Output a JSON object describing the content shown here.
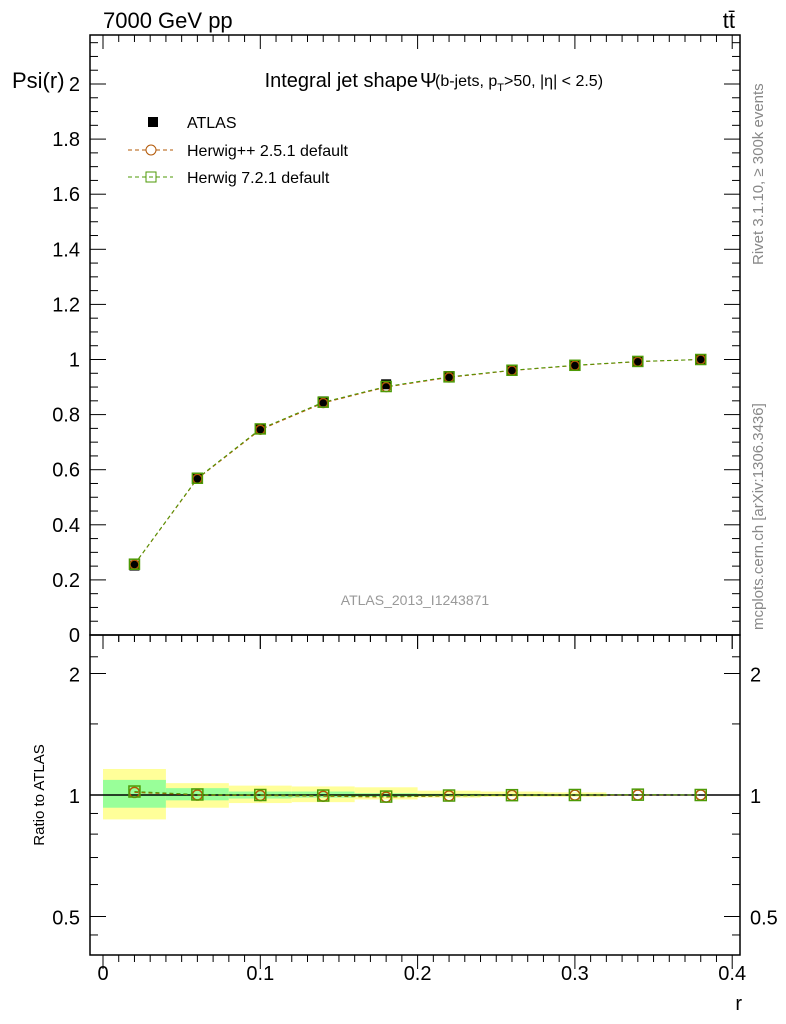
{
  "chart_data": [
    {
      "type": "line",
      "title": "Integral jet shape",
      "title_symbol": "Ψ",
      "title_detail": "(b-jets, p",
      "title_sub": "T",
      "title_detail2": ">50, |η| < 2.5)",
      "ylabel": "Psi(r)",
      "xlabel": "r",
      "xlim": [
        -0.008,
        0.405
      ],
      "ylim": [
        0,
        2.18
      ],
      "yticks": [
        "0",
        "0.2",
        "0.4",
        "0.6",
        "0.8",
        "1",
        "1.2",
        "1.4",
        "1.6",
        "1.8",
        "2"
      ],
      "x": [
        0.02,
        0.06,
        0.1,
        0.14,
        0.18,
        0.22,
        0.26,
        0.3,
        0.34,
        0.38
      ],
      "series": [
        {
          "name": "ATLAS",
          "values": [
            0.252,
            0.567,
            0.748,
            0.848,
            0.91,
            0.94,
            0.962,
            0.979,
            0.993,
            1.0
          ],
          "color": "#000000"
        },
        {
          "name": "Herwig++ 2.5.1 default",
          "values": [
            0.256,
            0.567,
            0.745,
            0.842,
            0.9,
            0.935,
            0.96,
            0.978,
            0.992,
            1.0
          ],
          "color": "#b35806"
        },
        {
          "name": "Herwig 7.2.1 default",
          "values": [
            0.257,
            0.569,
            0.748,
            0.845,
            0.902,
            0.937,
            0.961,
            0.979,
            0.993,
            1.0
          ],
          "color": "#4d9a06"
        }
      ],
      "legend": "top-left"
    },
    {
      "type": "line",
      "ylabel": "Ratio to ATLAS",
      "xlabel": "r",
      "yscale": "log",
      "ylim": [
        0.4,
        2.5
      ],
      "yticks": [
        "0.5",
        "1",
        "2"
      ],
      "xticks": [
        "0",
        "0.1",
        "0.2",
        "0.3",
        "0.4"
      ],
      "x": [
        0.02,
        0.06,
        0.1,
        0.14,
        0.18,
        0.22,
        0.26,
        0.3,
        0.34,
        0.38
      ],
      "bins": [
        [
          0,
          0.04
        ],
        [
          0.04,
          0.08
        ],
        [
          0.08,
          0.12
        ],
        [
          0.12,
          0.16
        ],
        [
          0.16,
          0.2
        ],
        [
          0.2,
          0.24
        ],
        [
          0.24,
          0.28
        ],
        [
          0.28,
          0.32
        ],
        [
          0.32,
          0.36
        ],
        [
          0.36,
          0.4
        ]
      ],
      "band_total": [
        [
          0.87,
          1.16
        ],
        [
          0.93,
          1.07
        ],
        [
          0.955,
          1.055
        ],
        [
          0.96,
          1.05
        ],
        [
          0.975,
          1.045
        ],
        [
          0.985,
          1.025
        ],
        [
          0.99,
          1.02
        ],
        [
          0.99,
          1.015
        ],
        [
          0.998,
          1.002
        ],
        [
          0.999,
          1.001
        ]
      ],
      "band_stat": [
        [
          0.93,
          1.09
        ],
        [
          0.97,
          1.04
        ],
        [
          0.98,
          1.02
        ],
        [
          0.985,
          1.02
        ],
        [
          0.99,
          1.01
        ],
        [
          0.993,
          1.007
        ],
        [
          0.995,
          1.005
        ],
        [
          0.996,
          1.004
        ],
        [
          0.999,
          1.001
        ],
        [
          0.9995,
          1.0005
        ]
      ],
      "series": [
        {
          "name": "Herwig++ 2.5.1 default",
          "values": [
            1.015,
            1.0,
            0.997,
            0.993,
            0.988,
            0.995,
            0.998,
            0.999,
            1.0,
            1.0
          ]
        },
        {
          "name": "Herwig 7.2.1 default",
          "values": [
            1.02,
            1.003,
            1.0,
            0.997,
            0.991,
            0.997,
            0.999,
            1.0,
            1.002,
            1.0
          ]
        }
      ]
    }
  ],
  "header": {
    "left": "7000 GeV pp",
    "right": "tt̄"
  },
  "side": {
    "rivet": "Rivet 3.1.10, ≥ 300k events",
    "mcplots": "mcplots.cern.ch [arXiv:1306.3436]"
  },
  "analysis_label": "ATLAS_2013_I1243871"
}
